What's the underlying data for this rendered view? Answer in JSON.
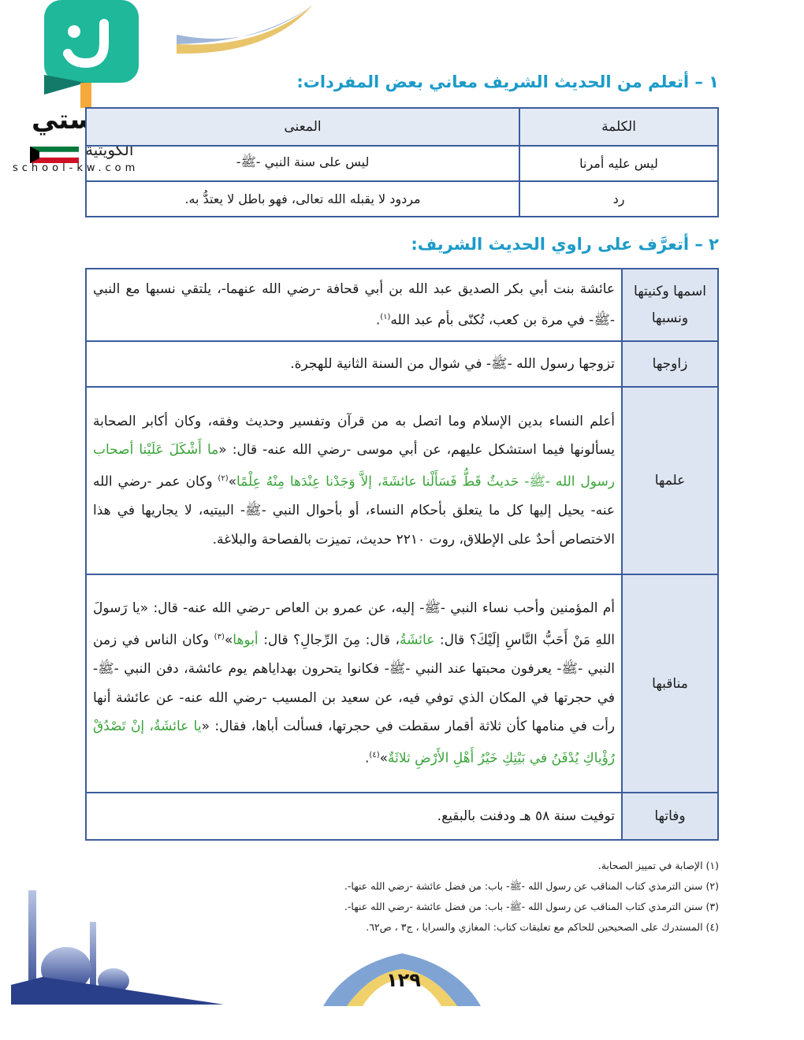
{
  "logo": {
    "name": "مدرستي",
    "country": "الكويتية",
    "site": "school-kw.com"
  },
  "section1": {
    "heading": "١ – أتعلم من الحديث الشريف معاني بعض المفردات:",
    "headers": [
      "الكلمة",
      "المعنى"
    ],
    "rows": [
      [
        "ليس عليه أمرنا",
        "ليس على سنة النبي -ﷺ-"
      ],
      [
        "رد",
        "مردود لا يقبله الله تعالى، فهو باطل لا يعتدُّ به."
      ]
    ]
  },
  "section2": {
    "heading": "٢ – أتعرَّف على راوي الحديث الشريف:",
    "rows": [
      {
        "label": "اسمها وكنيتها ونسبها",
        "segments": [
          {
            "t": "عائشة بنت أبي بكر الصديق عبد الله بن أبي قحافة -رضي الله عنهما-، يلتقي نسبها مع النبي -ﷺ- في مرة بن كعب، تُكنّى بأم عبد الله"
          },
          {
            "t": "(١)",
            "sup": true
          },
          {
            "t": "."
          }
        ]
      },
      {
        "label": "زاوجها",
        "segments": [
          {
            "t": "تزوجها رسول الله -ﷺ- في شوال من السنة الثانية للهجرة."
          }
        ]
      },
      {
        "label": "علمها",
        "segments": [
          {
            "t": "أعلم النساء بدين الإسلام وما اتصل به من قرآن وتفسير وحديث وفقه، وكان أكابر الصحابة يسألونها فيما استشكل عليهم، عن أبي موسى -رضي الله عنه- قال: «"
          },
          {
            "t": "ما أَشْكَلَ عَلَيْنا أصحاب رسول الله -ﷺ- حَديثٌ قَطُّ فَسَأَلْنا عائشَةَ، إلاَّ وَجَدْنا عِنْدَها مِنْهُ عِلْمًا",
            "green": true
          },
          {
            "t": "»"
          },
          {
            "t": "(٢)",
            "sup": true
          },
          {
            "t": " وكان عمر -رضي الله عنه- يحيل إليها كل ما يتعلق بأحكام النساء، أو بأحوال النبي -ﷺ- البيتيه، لا يجاريها في هذا الاختصاص أحدٌ على الإطلاق، روت ٢٢١٠ حديث، تميزت بالفصاحة والبلاغة."
          }
        ]
      },
      {
        "label": "مناقبها",
        "segments": [
          {
            "t": "أم المؤمنين وأحب نساء النبي -ﷺ- إليه، عن عمرو بن العاص -رضي الله عنه- قال: «يا رَسولَ اللهِ مَنْ أَحَبُّ النَّاسِ إلَيْكَ؟ قال: "
          },
          {
            "t": "عائشَةُ",
            "green": true
          },
          {
            "t": "، قال: مِنَ الرِّجالِ؟ قال: "
          },
          {
            "t": "أبوها",
            "green": true
          },
          {
            "t": "»"
          },
          {
            "t": "(٣)",
            "sup": true
          },
          {
            "t": " وكان الناس في زمن النبي -ﷺ- يعرفون محبتها عند النبي -ﷺ- فكانوا يتحرون بهداياهم يوم عائشة، دفن النبي -ﷺ- في حجرتها في المكان الذي توفي فيه، عن سعيد بن المسيب -رضي الله عنه- عن عائشة أنها رأت في منامها كأن ثلاثة أقمار سقطت في حجرتها، فسألت أباها، فقال: «"
          },
          {
            "t": "يا عائشَةُ، إنْ تَصْدُقْ رُؤْياكِ يُدْفَنُ في بَيْتِكِ خَيْرُ أَهْلِ الأَرْضِ ثلاثَةٌ",
            "green": true
          },
          {
            "t": "»"
          },
          {
            "t": "(٤)",
            "sup": true
          },
          {
            "t": "."
          }
        ]
      },
      {
        "label": "وفاتها",
        "segments": [
          {
            "t": "توفيت سنة ٥٨ هـ ودفنت بالبقيع."
          }
        ]
      }
    ]
  },
  "footnotes": [
    "(١) الإصابة في تمييز الصحابة.",
    "(٢) سنن الترمذي كتاب المناقب عن رسول الله -ﷺ- باب: من فضل عائشة -رضي الله عنها-.",
    "(٣) سنن الترمذي كتاب المناقب عن رسول الله -ﷺ- باب: من فضل عائشة -رضي الله عنها-.",
    "(٤) المستدرك على الصحيحين للحاكم مع تعليقات كتاب: المغازي والسرايا ، ج٣ ، ص٦٢."
  ],
  "page_number": "١٢٩",
  "colors": {
    "heading": "#1c9bc9",
    "border": "#3c5c9c",
    "label_bg": "#dde5f2",
    "quote_green": "#3aa33a",
    "logo_teal": "#1fb89a"
  }
}
